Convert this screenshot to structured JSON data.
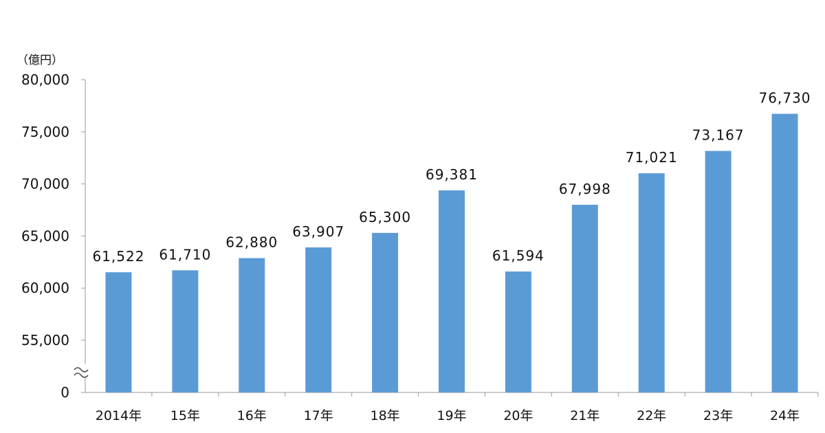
{
  "chart_data": {
    "type": "bar",
    "unit_label": "（億円）",
    "categories": [
      "2014年",
      "15年",
      "16年",
      "17年",
      "18年",
      "19年",
      "20年",
      "21年",
      "22年",
      "23年",
      "24年"
    ],
    "values": [
      61522,
      61710,
      62880,
      63907,
      65300,
      69381,
      61594,
      67998,
      71021,
      73167,
      76730
    ],
    "data_labels": [
      "61,522",
      "61,710",
      "62,880",
      "63,907",
      "65,300",
      "69,381",
      "61,594",
      "67,998",
      "71,021",
      "73,167",
      "76,730"
    ],
    "y_ticks": [
      55000,
      60000,
      65000,
      70000,
      75000,
      80000
    ],
    "y_tick_labels": [
      "0",
      "55,000",
      "60,000",
      "65,000",
      "70,000",
      "75,000",
      "80,000"
    ],
    "ylim": [
      55000,
      80000
    ],
    "axis_break": true,
    "bar_color": "#5b9bd5",
    "axis_color": "#999999",
    "grid": false,
    "legend": "none"
  }
}
